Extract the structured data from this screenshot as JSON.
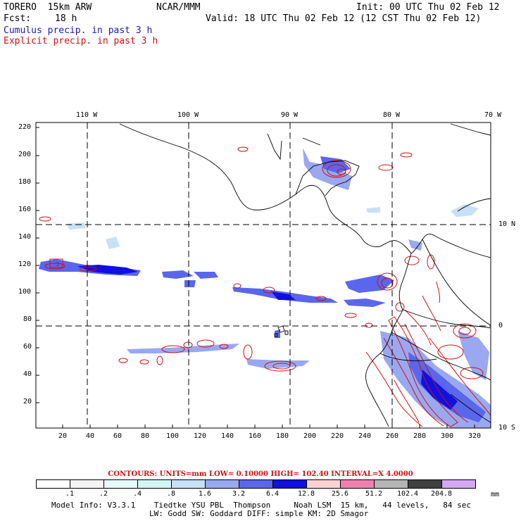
{
  "header": {
    "model": "TORERO  15km ARW",
    "org": "NCAR/MMM",
    "init": "Init: 00 UTC Thu 02 Feb 12",
    "fcst_label": "Fcst:",
    "fcst_value": "18 h",
    "valid": "Valid: 18 UTC Thu 02 Feb 12 (12 CST Thu 02 Feb 12)",
    "field1": "Cumulus precip. in past 3 h",
    "field2": "Explicit precip. in past 3 h"
  },
  "axes": {
    "top_lon": [
      "110 W",
      "100 W",
      "90 W",
      "80 W",
      "70 W"
    ],
    "right_lat": [
      "10 N",
      "0",
      "10 S"
    ],
    "left_y": [
      "220",
      "200",
      "180",
      "160",
      "140",
      "120",
      "100",
      "80",
      "60",
      "40",
      "20"
    ],
    "bottom_x": [
      "20",
      "40",
      "60",
      "80",
      "100",
      "120",
      "140",
      "160",
      "180",
      "200",
      "220",
      "240",
      "260",
      "280",
      "300",
      "320"
    ]
  },
  "contours": "CONTOURS:  UNITS=mm  LOW= 0.10000       HIGH=  102.40       INTERVAL=X  4.0000",
  "colorbar": {
    "colors": [
      "#ffffff",
      "#f4f4f4",
      "#e6fafa",
      "#d2f5f5",
      "#c8e0f8",
      "#9aa8f0",
      "#5a66ec",
      "#1010e0",
      "#ffd2d2",
      "#f080b0",
      "#b4b4b4",
      "#404040",
      "#d4a8f4"
    ],
    "labels": [
      ".1",
      ".2",
      ".4",
      ".8",
      "1.6",
      "3.2",
      "6.4",
      "12.8",
      "25.6",
      "51.2",
      "102.4",
      "204.8"
    ],
    "unit": "mm"
  },
  "footer": {
    "line1": "Model Info: V3.3.1    Tiedtke YSU PBL  Thompson     Noah LSM  15 km,   44 levels,   84 sec",
    "line2": "LW: Godd SW: Goddard DIFF: simple KM: 2D Smagor"
  },
  "map": {
    "label_marker": "1"
  }
}
